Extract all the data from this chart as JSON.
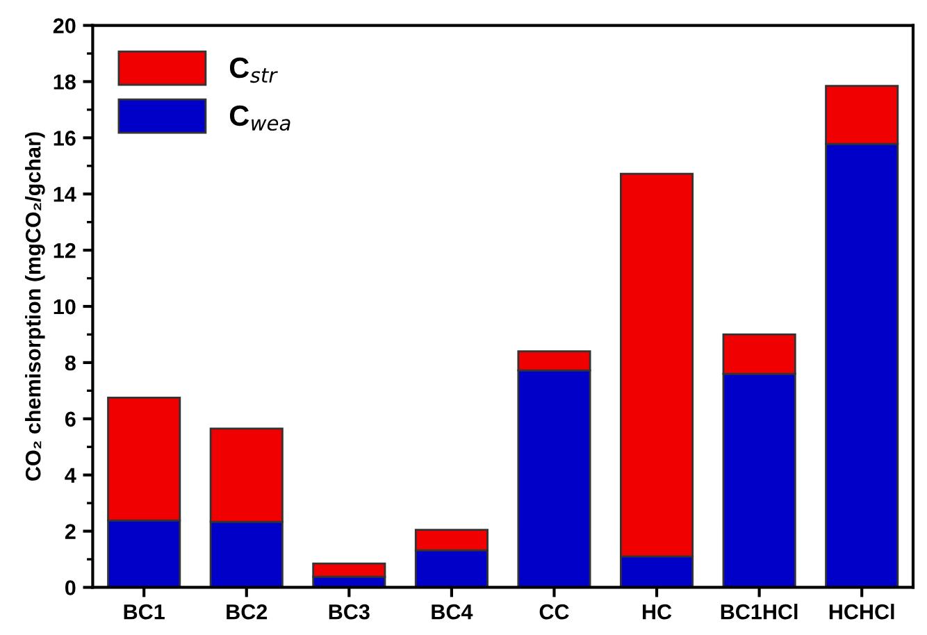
{
  "chart_data": {
    "type": "bar",
    "stacked": true,
    "ylabel": "CO₂ chemisorption (mgCO₂/gchar)",
    "categories": [
      "BC1",
      "BC2",
      "BC3",
      "BC4",
      "CC",
      "HC",
      "BC1HCl",
      "HCHCl"
    ],
    "series": [
      {
        "name": "C$_{wea}$",
        "color": "#0000c8",
        "values": [
          2.38,
          2.33,
          0.38,
          1.32,
          7.72,
          1.1,
          7.6,
          15.78
        ]
      },
      {
        "name": "C$_{str}$",
        "color": "#f00000",
        "values": [
          4.37,
          3.32,
          0.47,
          0.73,
          0.68,
          13.62,
          1.4,
          2.07
        ]
      }
    ],
    "ylim": [
      0,
      20
    ],
    "yticks": [
      0,
      2,
      4,
      6,
      8,
      10,
      12,
      14,
      16,
      18,
      20
    ],
    "grid": false,
    "legend": "top left"
  }
}
